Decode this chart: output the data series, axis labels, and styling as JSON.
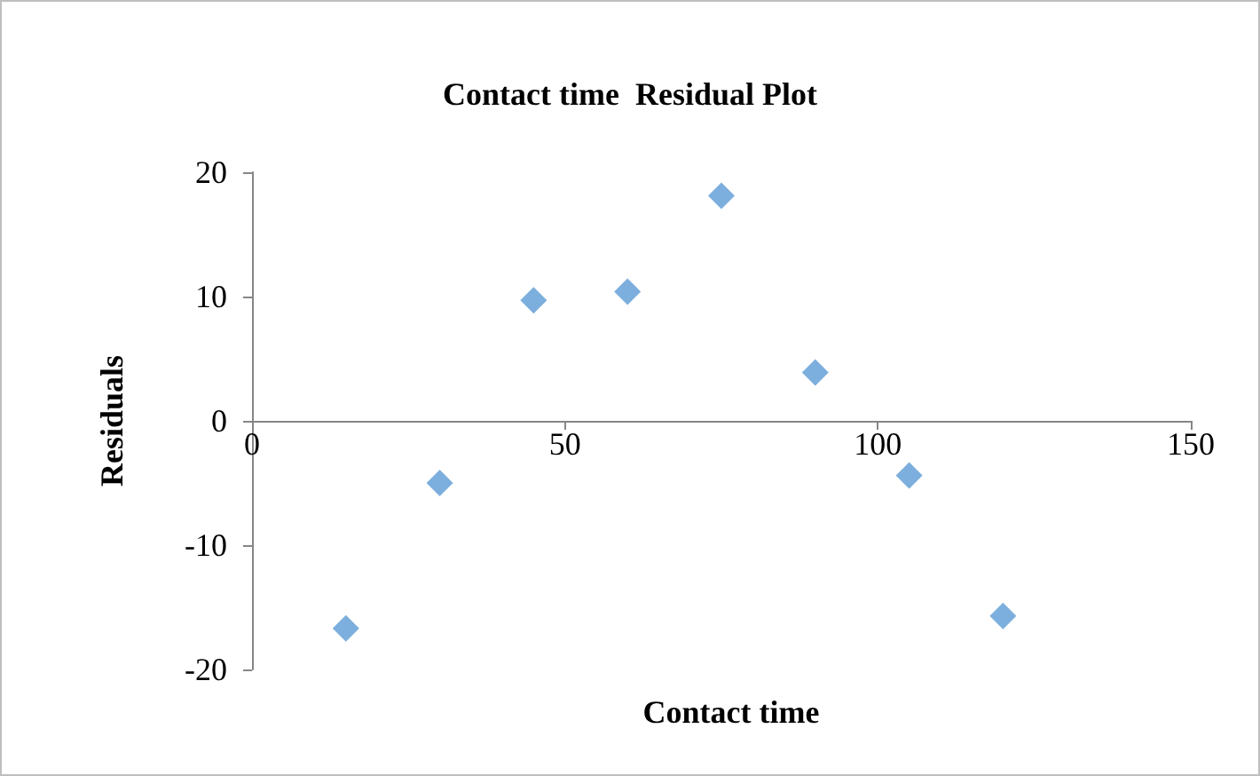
{
  "chart_data": {
    "type": "scatter",
    "title": "Contact time  Residual Plot",
    "xlabel": "Contact time",
    "ylabel": "Residuals",
    "x": [
      15,
      30,
      45,
      60,
      75,
      90,
      105,
      120
    ],
    "series": [
      {
        "color": "#5b9bd5",
        "values": [
          -16.7,
          -5.0,
          9.7,
          10.4,
          18.1,
          3.9,
          -4.4,
          -15.7
        ]
      }
    ],
    "xlim": [
      0,
      150
    ],
    "xticks": [
      0,
      50,
      100,
      150
    ],
    "ylim": [
      -20,
      20
    ],
    "yticks": [
      -20,
      -10,
      0,
      10,
      20
    ],
    "marker": "diamond",
    "grid": false
  }
}
